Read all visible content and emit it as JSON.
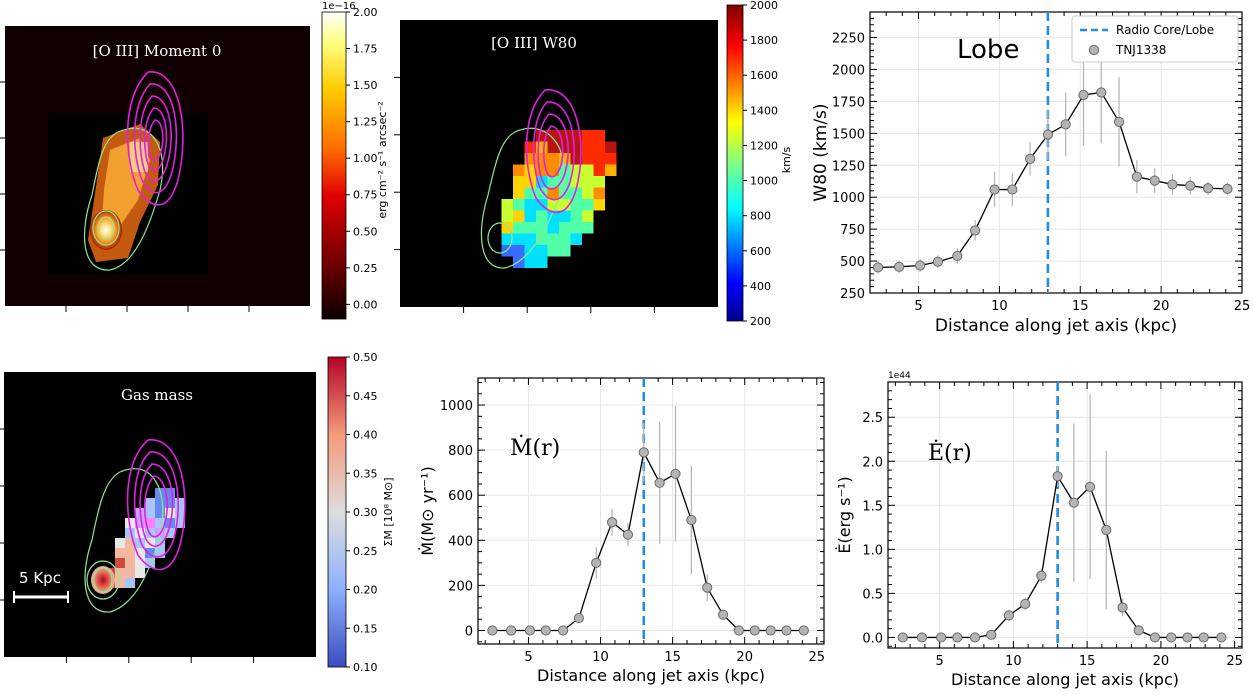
{
  "chart_data": [
    {
      "type": "image",
      "title": "[O III] Moment 0",
      "colorbar": {
        "label": "erg cm⁻² s⁻¹ arcsec⁻²",
        "exponent": "1e−16",
        "ticks": [
          "2.00",
          "1.75",
          "1.50",
          "1.25",
          "1.00",
          "0.75",
          "0.50",
          "0.25",
          "0.00"
        ],
        "range": [
          -0.1,
          2.0
        ],
        "colormap": "hot"
      }
    },
    {
      "type": "image",
      "title": "[O III] W80",
      "colorbar": {
        "label": "km/s",
        "ticks": [
          "2000",
          "1800",
          "1600",
          "1400",
          "1200",
          "1000",
          "800",
          "600",
          "400",
          "200"
        ],
        "range": [
          200,
          2000
        ],
        "colormap": "jet"
      }
    },
    {
      "type": "line",
      "title": "Lobe",
      "xlabel": "Distance along jet axis  (kpc)",
      "ylabel": "W80 (km/s)",
      "xlim": [
        2,
        25
      ],
      "ylim": [
        250,
        2450
      ],
      "xticks": [
        "5",
        "10",
        "15",
        "20",
        "25"
      ],
      "yticks": [
        "250",
        "500",
        "750",
        "1000",
        "1250",
        "1500",
        "1750",
        "2000",
        "2250"
      ],
      "legend": [
        "Radio Core/Lobe",
        "TNJ1338"
      ],
      "vline": 13,
      "series": [
        {
          "name": "TNJ1338",
          "x": [
            2.5,
            3.8,
            5.1,
            6.2,
            7.4,
            8.5,
            9.7,
            10.8,
            11.9,
            13.0,
            14.1,
            15.2,
            16.3,
            17.4,
            18.5,
            19.6,
            20.7,
            21.8,
            22.9,
            24.1
          ],
          "y": [
            450,
            455,
            465,
            495,
            540,
            740,
            1060,
            1060,
            1300,
            1490,
            1570,
            1800,
            1820,
            1590,
            1160,
            1130,
            1100,
            1090,
            1070,
            1065
          ],
          "err": [
            50,
            50,
            50,
            50,
            60,
            80,
            140,
            130,
            130,
            200,
            250,
            400,
            400,
            350,
            130,
            100,
            80,
            70,
            50,
            50
          ]
        }
      ]
    },
    {
      "type": "image",
      "title": "Gas mass",
      "scalebar": "5 Kpc",
      "colorbar": {
        "label": "ΣM [10⁸ M⊙]",
        "ticks": [
          "0.50",
          "0.45",
          "0.40",
          "0.35",
          "0.30",
          "0.25",
          "0.20",
          "0.15",
          "0.10"
        ],
        "range": [
          0.1,
          0.5
        ],
        "colormap": "coolwarm"
      }
    },
    {
      "type": "line",
      "title": "Ṁ(r)",
      "xlabel": "Distance along jet axis  (kpc)",
      "ylabel": "Ṁ(M⊙ yr⁻¹)",
      "xlim": [
        1.5,
        25.5
      ],
      "ylim": [
        -60,
        1120
      ],
      "xticks": [
        "5",
        "10",
        "15",
        "20",
        "25"
      ],
      "yticks": [
        "0",
        "200",
        "400",
        "600",
        "800",
        "1000"
      ],
      "vline": 13,
      "series": [
        {
          "x": [
            2.5,
            3.8,
            5.1,
            6.2,
            7.4,
            8.5,
            9.7,
            10.8,
            11.9,
            13.0,
            14.1,
            15.2,
            16.3,
            17.4,
            18.5,
            19.6,
            20.7,
            21.8,
            22.9,
            24.1
          ],
          "y": [
            0,
            0,
            0,
            0,
            0,
            55,
            300,
            480,
            425,
            790,
            655,
            695,
            490,
            190,
            70,
            0,
            0,
            0,
            0,
            0
          ],
          "err": [
            0,
            0,
            0,
            0,
            0,
            20,
            70,
            60,
            50,
            130,
            270,
            300,
            240,
            60,
            0,
            0,
            0,
            0,
            0,
            0
          ]
        }
      ]
    },
    {
      "type": "line",
      "title": "Ė(r)",
      "xlabel": "Distance along jet axis  (kpc)",
      "ylabel": "Ė(erg s⁻¹)",
      "exponent": "1e44",
      "xlim": [
        1.5,
        25.5
      ],
      "ylim": [
        -0.12,
        2.9
      ],
      "xticks": [
        "5",
        "10",
        "15",
        "20",
        "25"
      ],
      "yticks": [
        "0.0",
        "0.5",
        "1.0",
        "1.5",
        "2.0",
        "2.5"
      ],
      "vline": 13,
      "series": [
        {
          "x": [
            2.5,
            3.8,
            5.1,
            6.2,
            7.4,
            8.5,
            9.7,
            10.8,
            11.9,
            13.0,
            14.1,
            15.2,
            16.3,
            17.4,
            18.5,
            19.6,
            20.7,
            21.8,
            22.9,
            24.1
          ],
          "y": [
            0,
            0,
            0,
            0,
            0,
            0.03,
            0.25,
            0.38,
            0.7,
            1.83,
            1.53,
            1.71,
            1.22,
            0.34,
            0.08,
            0,
            0,
            0,
            0,
            0
          ],
          "err": [
            0,
            0,
            0,
            0,
            0,
            0,
            0.06,
            0.07,
            0.08,
            0.12,
            0.9,
            1.05,
            0.9,
            0.1,
            0,
            0,
            0,
            0,
            0,
            0
          ]
        }
      ]
    }
  ]
}
